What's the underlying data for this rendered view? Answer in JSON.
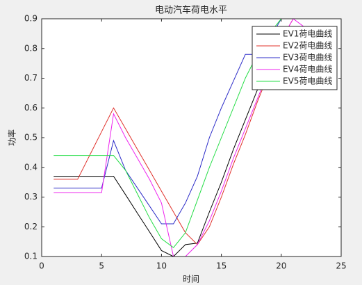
{
  "chart_data": {
    "type": "line",
    "title": "电动汽车荷电水平",
    "x_label": "时间",
    "y_label": "功率",
    "x": [
      1,
      2,
      3,
      4,
      5,
      6,
      7,
      8,
      9,
      10,
      11,
      12,
      13,
      14,
      15,
      16,
      17,
      18,
      19,
      20,
      21,
      22,
      23,
      24
    ],
    "series": [
      {
        "name": "EV1荷电曲线",
        "color": "#000000",
        "values": [
          0.37,
          0.37,
          0.37,
          0.37,
          0.37,
          0.37,
          0.308,
          0.245,
          0.183,
          0.12,
          0.1,
          0.14,
          0.145,
          0.25,
          0.35,
          0.46,
          0.56,
          0.66,
          0.77,
          0.87,
          0.87,
          0.87,
          0.87,
          0.87
        ]
      },
      {
        "name": "EV2荷电曲线",
        "color": "#e0302a",
        "values": [
          0.36,
          0.36,
          0.36,
          0.44,
          0.52,
          0.6,
          0.53,
          0.46,
          0.39,
          0.32,
          0.25,
          0.18,
          0.14,
          0.2,
          0.3,
          0.41,
          0.51,
          0.62,
          0.72,
          0.83,
          0.9,
          0.9,
          0.9,
          0.9
        ]
      },
      {
        "name": "EV3荷电曲线",
        "color": "#2c2cc8",
        "values": [
          0.33,
          0.33,
          0.33,
          0.33,
          0.33,
          0.49,
          0.39,
          0.33,
          0.27,
          0.21,
          0.21,
          0.28,
          0.37,
          0.5,
          0.6,
          0.69,
          0.78,
          0.78,
          0.83,
          0.9,
          0.9,
          0.9,
          0.9,
          0.9
        ]
      },
      {
        "name": "EV4荷电曲线",
        "color": "#ee22ee",
        "values": [
          0.315,
          0.315,
          0.315,
          0.315,
          0.315,
          0.58,
          0.5,
          0.43,
          0.36,
          0.28,
          0.1,
          0.1,
          0.14,
          0.22,
          0.32,
          0.43,
          0.53,
          0.63,
          0.73,
          0.83,
          0.9,
          0.87,
          0.87,
          0.87
        ]
      },
      {
        "name": "EV5荷电曲线",
        "color": "#22dd44",
        "values": [
          0.44,
          0.44,
          0.44,
          0.44,
          0.44,
          0.44,
          0.39,
          0.31,
          0.23,
          0.16,
          0.13,
          0.18,
          0.29,
          0.4,
          0.5,
          0.6,
          0.7,
          0.78,
          0.85,
          0.9,
          0.9,
          0.9,
          0.9,
          0.9
        ]
      }
    ],
    "xlim": [
      0,
      25
    ],
    "xticks": [
      0,
      5,
      10,
      15,
      20,
      25
    ],
    "ylim": [
      0.1,
      0.9
    ],
    "yticks": [
      0.1,
      0.2,
      0.3,
      0.4,
      0.5,
      0.6,
      0.7,
      0.8,
      0.9
    ],
    "legend": "northeast"
  }
}
